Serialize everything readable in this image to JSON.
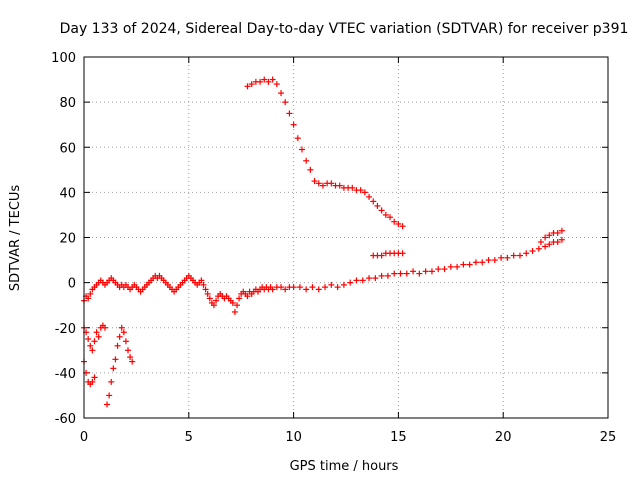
{
  "chart_data": {
    "type": "scatter",
    "title": "Day 133 of 2024, Sidereal Day-to-day VTEC variation (SDTVAR) for receiver p391",
    "xlabel": "GPS time / hours",
    "ylabel": "SDTVAR / TECUs",
    "xlim": [
      0,
      25
    ],
    "ylim": [
      -60,
      100
    ],
    "xticks": [
      0,
      5,
      10,
      15,
      20,
      25
    ],
    "yticks": [
      -60,
      -40,
      -20,
      0,
      20,
      40,
      60,
      80,
      100
    ],
    "grid": true,
    "marker": "+",
    "color": "#ff0000",
    "series": [
      {
        "name": "main-trace",
        "points": [
          [
            0.0,
            -8
          ],
          [
            0.1,
            -6
          ],
          [
            0.2,
            -7
          ],
          [
            0.3,
            -5
          ],
          [
            0.4,
            -3
          ],
          [
            0.5,
            -2
          ],
          [
            0.6,
            -1
          ],
          [
            0.7,
            0
          ],
          [
            0.8,
            1
          ],
          [
            0.9,
            0
          ],
          [
            1.0,
            -1
          ],
          [
            1.1,
            0
          ],
          [
            1.2,
            1
          ],
          [
            1.3,
            2
          ],
          [
            1.4,
            1
          ],
          [
            1.5,
            0
          ],
          [
            1.6,
            -1
          ],
          [
            1.7,
            -2
          ],
          [
            1.8,
            -1
          ],
          [
            1.9,
            -2
          ],
          [
            2.0,
            -1
          ],
          [
            2.1,
            -2
          ],
          [
            2.2,
            -3
          ],
          [
            2.3,
            -2
          ],
          [
            2.4,
            -1
          ],
          [
            2.5,
            -2
          ],
          [
            2.6,
            -3
          ],
          [
            2.7,
            -4
          ],
          [
            2.8,
            -3
          ],
          [
            2.9,
            -2
          ],
          [
            3.0,
            -1
          ],
          [
            3.1,
            0
          ],
          [
            3.2,
            1
          ],
          [
            3.3,
            2
          ],
          [
            3.4,
            3
          ],
          [
            3.5,
            2
          ],
          [
            3.6,
            3
          ],
          [
            3.7,
            2
          ],
          [
            3.8,
            1
          ],
          [
            3.9,
            0
          ],
          [
            4.0,
            -1
          ],
          [
            4.1,
            -2
          ],
          [
            4.2,
            -3
          ],
          [
            4.3,
            -4
          ],
          [
            4.4,
            -3
          ],
          [
            4.5,
            -2
          ],
          [
            4.6,
            -1
          ],
          [
            4.7,
            0
          ],
          [
            4.8,
            1
          ],
          [
            4.9,
            2
          ],
          [
            5.0,
            3
          ],
          [
            5.1,
            2
          ],
          [
            5.2,
            1
          ],
          [
            5.3,
            0
          ],
          [
            5.4,
            -1
          ],
          [
            5.5,
            0
          ],
          [
            5.6,
            1
          ],
          [
            5.7,
            -1
          ],
          [
            5.8,
            -3
          ],
          [
            5.9,
            -5
          ],
          [
            6.0,
            -7
          ],
          [
            6.1,
            -9
          ],
          [
            6.2,
            -10
          ],
          [
            6.3,
            -8
          ],
          [
            6.4,
            -6
          ],
          [
            6.5,
            -5
          ],
          [
            6.6,
            -6
          ],
          [
            6.7,
            -7
          ],
          [
            6.8,
            -6
          ],
          [
            6.9,
            -7
          ],
          [
            7.0,
            -8
          ],
          [
            7.1,
            -9
          ],
          [
            7.2,
            -13
          ],
          [
            7.3,
            -10
          ],
          [
            7.4,
            -7
          ],
          [
            7.5,
            -5
          ],
          [
            7.6,
            -4
          ],
          [
            7.7,
            -5
          ],
          [
            7.8,
            -6
          ],
          [
            7.9,
            -4
          ],
          [
            8.0,
            -5
          ],
          [
            8.1,
            -4
          ],
          [
            8.2,
            -3
          ],
          [
            8.3,
            -4
          ],
          [
            8.4,
            -3
          ],
          [
            8.5,
            -2
          ],
          [
            8.6,
            -3
          ],
          [
            8.7,
            -2
          ],
          [
            8.8,
            -3
          ],
          [
            8.9,
            -2
          ],
          [
            9.0,
            -3
          ],
          [
            9.2,
            -2
          ],
          [
            9.4,
            -2
          ],
          [
            9.6,
            -3
          ],
          [
            9.8,
            -2
          ],
          [
            10.0,
            -2
          ],
          [
            10.3,
            -2
          ],
          [
            10.6,
            -3
          ],
          [
            10.9,
            -2
          ],
          [
            11.2,
            -3
          ],
          [
            11.5,
            -2
          ],
          [
            11.8,
            -1
          ],
          [
            12.1,
            -2
          ],
          [
            12.4,
            -1
          ],
          [
            12.7,
            0
          ],
          [
            13.0,
            1
          ],
          [
            13.3,
            1
          ],
          [
            13.6,
            2
          ],
          [
            13.9,
            2
          ],
          [
            14.2,
            3
          ],
          [
            14.5,
            3
          ],
          [
            14.8,
            4
          ],
          [
            15.1,
            4
          ],
          [
            15.4,
            4
          ],
          [
            15.7,
            5
          ],
          [
            16.0,
            4
          ],
          [
            16.3,
            5
          ],
          [
            16.6,
            5
          ],
          [
            16.9,
            6
          ],
          [
            17.2,
            6
          ],
          [
            17.5,
            7
          ],
          [
            17.8,
            7
          ],
          [
            18.1,
            8
          ],
          [
            18.4,
            8
          ],
          [
            18.7,
            9
          ],
          [
            19.0,
            9
          ],
          [
            19.3,
            10
          ],
          [
            19.6,
            10
          ],
          [
            19.9,
            11
          ],
          [
            20.2,
            11
          ],
          [
            20.5,
            12
          ],
          [
            20.8,
            12
          ],
          [
            21.1,
            13
          ],
          [
            21.4,
            14
          ],
          [
            21.7,
            15
          ],
          [
            22.0,
            16
          ],
          [
            22.2,
            17
          ],
          [
            22.4,
            18
          ],
          [
            22.6,
            18
          ],
          [
            22.8,
            19
          ]
        ]
      },
      {
        "name": "upper-trace",
        "points": [
          [
            7.8,
            87
          ],
          [
            8.0,
            88
          ],
          [
            8.2,
            89
          ],
          [
            8.4,
            89
          ],
          [
            8.6,
            90
          ],
          [
            8.8,
            89
          ],
          [
            9.0,
            90
          ],
          [
            9.2,
            88
          ],
          [
            9.4,
            84
          ],
          [
            9.6,
            80
          ],
          [
            9.8,
            75
          ],
          [
            10.0,
            70
          ],
          [
            10.2,
            64
          ],
          [
            10.4,
            59
          ],
          [
            10.6,
            54
          ],
          [
            10.8,
            50
          ],
          [
            11.0,
            45
          ],
          [
            11.2,
            44
          ],
          [
            11.4,
            43
          ],
          [
            11.6,
            44
          ],
          [
            11.8,
            44
          ],
          [
            12.0,
            43
          ],
          [
            12.2,
            43
          ],
          [
            12.4,
            42
          ],
          [
            12.6,
            42
          ],
          [
            12.8,
            42
          ],
          [
            13.0,
            41
          ],
          [
            13.2,
            41
          ],
          [
            13.4,
            40
          ],
          [
            13.6,
            38
          ],
          [
            13.8,
            36
          ],
          [
            14.0,
            34
          ],
          [
            14.2,
            32
          ],
          [
            14.4,
            30
          ],
          [
            14.6,
            29
          ],
          [
            14.8,
            27
          ],
          [
            15.0,
            26
          ],
          [
            15.2,
            25
          ]
        ]
      },
      {
        "name": "lower-left-traces",
        "points": [
          [
            0.0,
            -35
          ],
          [
            0.1,
            -40
          ],
          [
            0.2,
            -44
          ],
          [
            0.3,
            -45
          ],
          [
            0.4,
            -44
          ],
          [
            0.5,
            -42
          ],
          [
            0.0,
            -20
          ],
          [
            0.1,
            -22
          ],
          [
            0.2,
            -25
          ],
          [
            0.3,
            -28
          ],
          [
            0.4,
            -30
          ],
          [
            0.5,
            -26
          ],
          [
            0.6,
            -22
          ],
          [
            0.7,
            -24
          ],
          [
            0.8,
            -20
          ],
          [
            0.9,
            -19
          ],
          [
            1.0,
            -20
          ],
          [
            1.1,
            -54
          ],
          [
            1.2,
            -50
          ],
          [
            1.3,
            -44
          ],
          [
            1.4,
            -38
          ],
          [
            1.5,
            -34
          ],
          [
            1.6,
            -28
          ],
          [
            1.7,
            -24
          ],
          [
            1.8,
            -20
          ],
          [
            1.9,
            -22
          ],
          [
            2.0,
            -26
          ],
          [
            2.1,
            -30
          ],
          [
            2.2,
            -33
          ],
          [
            2.3,
            -35
          ]
        ]
      },
      {
        "name": "mid-segment",
        "points": [
          [
            13.8,
            12
          ],
          [
            14.0,
            12
          ],
          [
            14.2,
            12
          ],
          [
            14.4,
            13
          ],
          [
            14.6,
            13
          ],
          [
            14.8,
            13
          ],
          [
            15.0,
            13
          ],
          [
            15.2,
            13
          ]
        ]
      },
      {
        "name": "end-segment",
        "points": [
          [
            21.8,
            18
          ],
          [
            22.0,
            20
          ],
          [
            22.2,
            21
          ],
          [
            22.4,
            22
          ],
          [
            22.6,
            22
          ],
          [
            22.8,
            23
          ]
        ]
      }
    ]
  }
}
